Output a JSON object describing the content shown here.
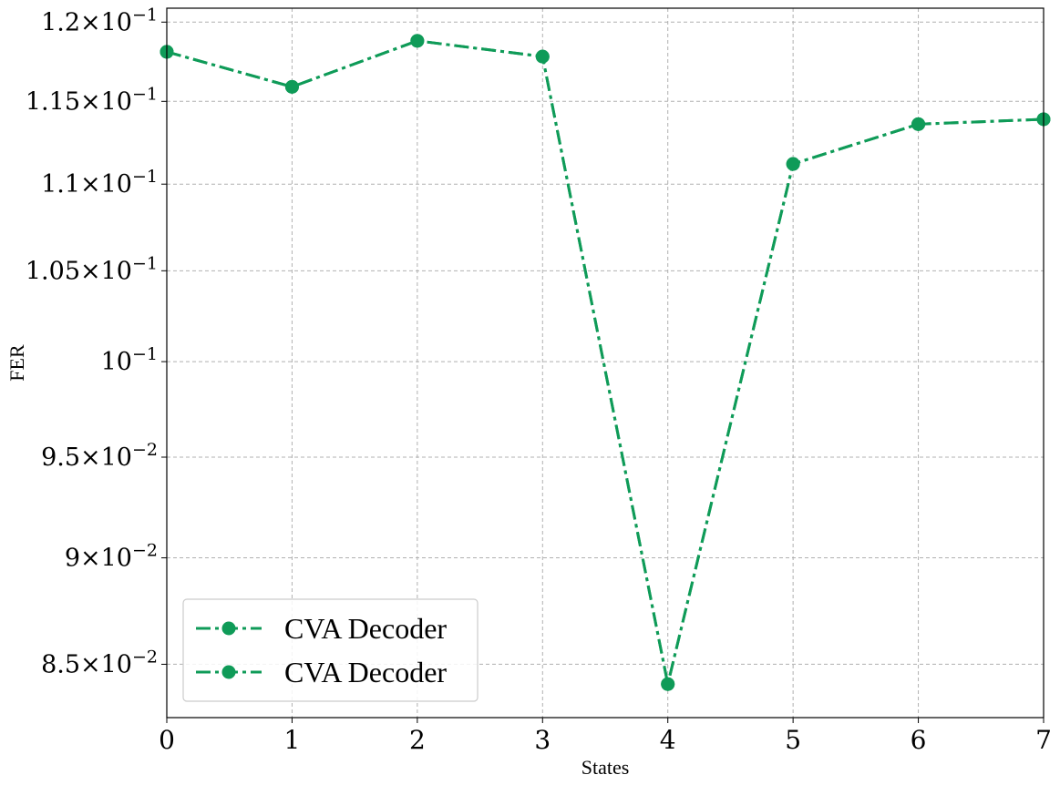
{
  "chart_data": {
    "type": "line",
    "xlabel": "States",
    "ylabel": "FER",
    "x": [
      0,
      1,
      2,
      3,
      4,
      5,
      6,
      7
    ],
    "xlim": [
      0,
      7
    ],
    "ylim": [
      0.0826,
      0.1209
    ],
    "yscale": "log",
    "grid": true,
    "legend_position": "lower-left",
    "series": [
      {
        "name": "CVA Decoder",
        "color": "#0f9b58",
        "linestyle": "dash-dot",
        "marker": "circle",
        "values": [
          0.1181,
          0.1159,
          0.1188,
          0.1178,
          0.0841,
          0.1112,
          0.1136,
          0.1139
        ]
      },
      {
        "name": "CVA Decoder",
        "color": "#0f9b58",
        "linestyle": "dash-dot",
        "marker": "circle",
        "values": [
          0.1181,
          0.1159,
          0.1188,
          0.1178,
          0.0841,
          0.1112,
          0.1136,
          0.1139
        ]
      }
    ],
    "xticks": [
      "0",
      "1",
      "2",
      "3",
      "4",
      "5",
      "6",
      "7"
    ],
    "yticks": [
      {
        "value": 0.085,
        "mantissa": "8.5",
        "exponent": "−2"
      },
      {
        "value": 0.09,
        "mantissa": "9",
        "exponent": "−2"
      },
      {
        "value": 0.095,
        "mantissa": "9.5",
        "exponent": "−2"
      },
      {
        "value": 0.1,
        "mantissa": "",
        "exponent": "−1"
      },
      {
        "value": 0.105,
        "mantissa": "1.05",
        "exponent": "−1"
      },
      {
        "value": 0.11,
        "mantissa": "1.1",
        "exponent": "−1"
      },
      {
        "value": 0.115,
        "mantissa": "1.15",
        "exponent": "−1"
      },
      {
        "value": 0.12,
        "mantissa": "1.2",
        "exponent": "−1"
      }
    ]
  }
}
